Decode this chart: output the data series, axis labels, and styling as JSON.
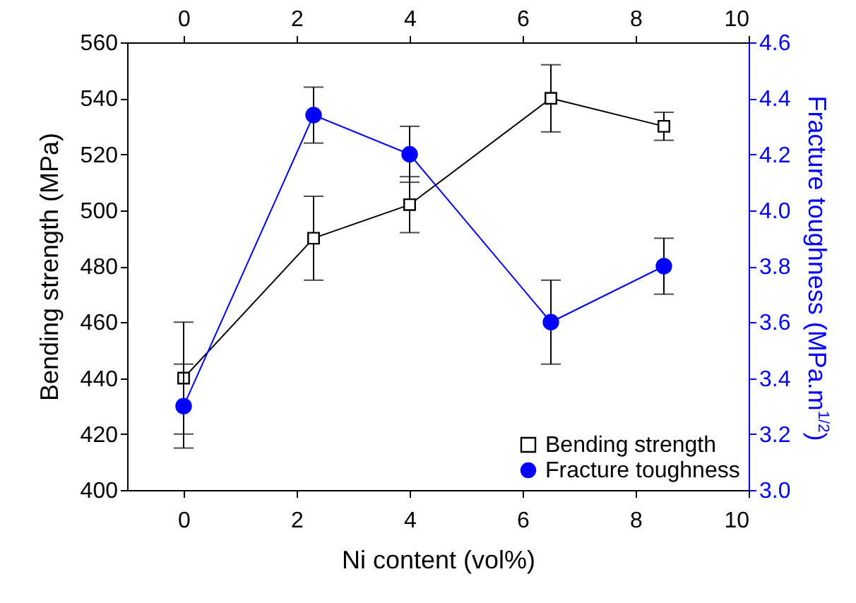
{
  "chart_data": {
    "type": "line",
    "xlabel": "Ni content (vol%)",
    "ylabel": "Bending strength (MPa)",
    "y2label": "Fracture toughness (MPa.m$^{1/2}$)",
    "series": [
      {
        "name": "Bending strength",
        "color": "#000000",
        "marker": "square",
        "x": [
          0,
          2.3,
          4,
          6.5,
          8.5
        ],
        "values": [
          440,
          490,
          502,
          540,
          530
        ],
        "errors": [
          [
            420,
            460
          ],
          [
            475,
            505
          ],
          [
            492,
            512
          ],
          [
            528,
            552
          ],
          [
            525,
            535
          ]
        ]
      },
      {
        "name": "Fracture toughness",
        "color": "#0000ff",
        "marker": "circle",
        "axis": "y2",
        "x": [
          0,
          2.3,
          4,
          6.5,
          8.5
        ],
        "values": [
          3.3,
          4.34,
          4.2,
          3.6,
          3.8
        ],
        "errors": [
          [
            3.15,
            3.45
          ],
          [
            4.24,
            4.44
          ],
          [
            4.1,
            4.3
          ],
          [
            3.45,
            3.75
          ],
          [
            3.7,
            3.9
          ]
        ]
      }
    ],
    "xlim": [
      -1,
      10
    ],
    "xticks": [
      0,
      2,
      4,
      6,
      8,
      10
    ],
    "x2lim": [
      -1,
      10
    ],
    "x2ticks": [
      0,
      2,
      4,
      6,
      8,
      10
    ],
    "ylim": [
      400,
      560
    ],
    "yticks": [
      400,
      420,
      440,
      460,
      480,
      500,
      520,
      540,
      560
    ],
    "y2lim": [
      3.0,
      4.6
    ],
    "y2ticks": [
      {
        "value": 3,
        "label": "3.0"
      },
      3.2,
      3.4,
      3.6,
      3.8,
      {
        "value": 4,
        "label": "4.0"
      },
      4.2,
      4.4,
      4.6
    ],
    "legend": "bottom right",
    "grid": false
  }
}
